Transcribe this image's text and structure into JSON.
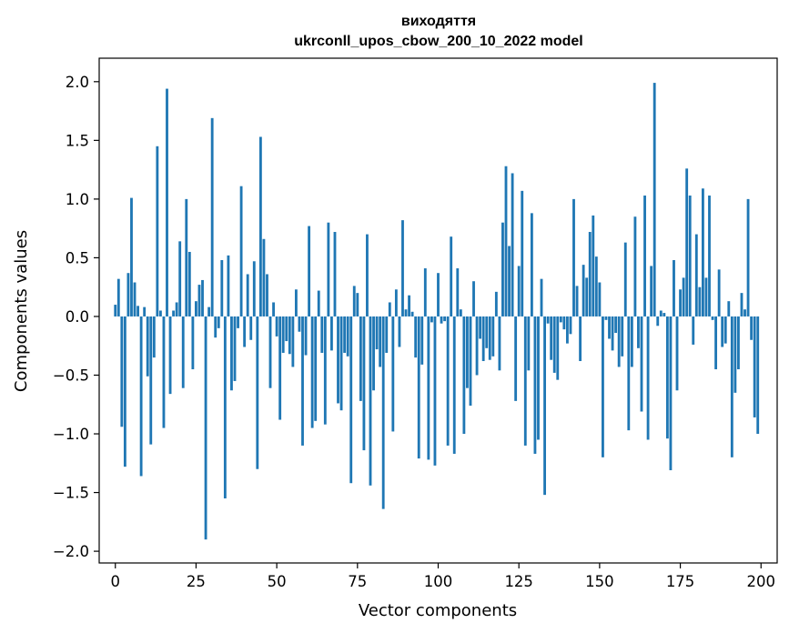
{
  "chart_data": {
    "type": "bar",
    "title": "виходяття",
    "subtitle": "ukrconll_upos_cbow_200_10_2022 model",
    "xlabel": "Vector components",
    "ylabel": "Components values",
    "xlim": [
      -5,
      205
    ],
    "ylim": [
      -2.1,
      2.2
    ],
    "xticks": [
      0,
      25,
      50,
      75,
      100,
      125,
      150,
      175,
      200
    ],
    "yticks": [
      -2.0,
      -1.5,
      -1.0,
      -0.5,
      0.0,
      0.5,
      1.0,
      1.5,
      2.0
    ],
    "ytick_labels": [
      "−2.0",
      "−1.5",
      "−1.0",
      "−0.5",
      "0.0",
      "0.5",
      "1.0",
      "1.5",
      "2.0"
    ],
    "bar_color": "#1f77b4",
    "grid": false,
    "legend": "none",
    "values": [
      0.1,
      0.32,
      -0.94,
      -1.28,
      0.37,
      1.01,
      0.29,
      0.09,
      -1.36,
      0.08,
      -0.51,
      -1.09,
      -0.35,
      1.45,
      0.05,
      -0.95,
      1.94,
      -0.66,
      0.05,
      0.12,
      0.64,
      -0.61,
      1.0,
      0.55,
      -0.45,
      0.13,
      0.27,
      0.31,
      -1.9,
      0.08,
      1.69,
      -0.18,
      -0.1,
      0.48,
      -1.55,
      0.52,
      -0.63,
      -0.55,
      -0.1,
      1.11,
      -0.26,
      0.36,
      -0.2,
      0.47,
      -1.3,
      1.53,
      0.66,
      0.36,
      -0.61,
      0.12,
      -0.17,
      -0.88,
      -0.31,
      -0.21,
      -0.32,
      -0.43,
      0.23,
      -0.13,
      -1.1,
      -0.33,
      0.77,
      -0.95,
      -0.89,
      0.22,
      -0.31,
      -0.92,
      0.8,
      -0.29,
      0.72,
      -0.74,
      -0.8,
      -0.31,
      -0.34,
      -1.42,
      0.26,
      0.2,
      -0.72,
      -1.14,
      0.7,
      -1.44,
      -0.63,
      -0.28,
      -0.43,
      -1.64,
      -0.31,
      0.12,
      -0.98,
      0.23,
      -0.26,
      0.82,
      0.06,
      0.18,
      0.04,
      -0.35,
      -1.21,
      -0.41,
      0.41,
      -1.22,
      -0.05,
      -1.27,
      0.37,
      -0.06,
      -0.04,
      -1.1,
      0.68,
      -1.17,
      0.41,
      0.06,
      -1.0,
      -0.61,
      -0.76,
      0.3,
      -0.5,
      -0.19,
      -0.38,
      -0.27,
      -0.37,
      -0.34,
      0.21,
      -0.46,
      0.8,
      1.28,
      0.6,
      1.22,
      -0.72,
      0.43,
      1.07,
      -1.1,
      -0.46,
      0.88,
      -1.17,
      -1.05,
      0.32,
      -1.52,
      -0.06,
      -0.37,
      -0.48,
      -0.54,
      -0.05,
      -0.11,
      -0.23,
      -0.15,
      1.0,
      0.26,
      -0.38,
      0.44,
      0.33,
      0.72,
      0.86,
      0.51,
      0.29,
      -1.2,
      -0.03,
      -0.19,
      -0.29,
      -0.14,
      -0.43,
      -0.34,
      0.63,
      -0.97,
      -0.43,
      0.85,
      -0.27,
      -0.81,
      1.03,
      -1.05,
      0.43,
      1.99,
      -0.08,
      0.05,
      0.03,
      -1.04,
      -1.31,
      0.48,
      -0.63,
      0.23,
      0.33,
      1.26,
      1.03,
      -0.24,
      0.7,
      0.25,
      1.09,
      0.33,
      1.03,
      -0.03,
      -0.45,
      0.4,
      -0.26,
      -0.23,
      0.13,
      -1.2,
      -0.65,
      -0.45,
      0.2,
      0.06,
      1.0,
      -0.2,
      -0.86,
      -1.0
    ]
  }
}
